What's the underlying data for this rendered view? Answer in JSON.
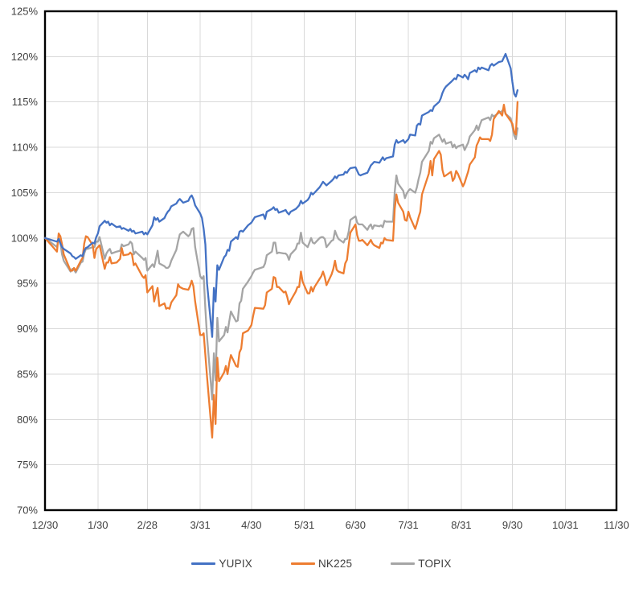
{
  "chart_data": {
    "type": "line",
    "title": "",
    "grid": true,
    "grid_color": "#D9D9D9",
    "axis_border_color": "#000000",
    "tick_label_color": "#404040",
    "legend_position": "bottom",
    "x_axis": {
      "tick_labels": [
        "12/30",
        "1/30",
        "2/28",
        "3/31",
        "4/30",
        "5/31",
        "6/30",
        "7/31",
        "8/31",
        "9/30",
        "10/31",
        "11/30"
      ]
    },
    "y_axis": {
      "min": 70,
      "max": 125,
      "step": 5,
      "unit": "%",
      "tick_labels": [
        "125%",
        "120%",
        "115%",
        "110%",
        "105%",
        "100%",
        "95%",
        "90%",
        "85%",
        "80%",
        "75%",
        "70%"
      ]
    },
    "dates": [
      "12/30",
      "1/6",
      "1/7",
      "1/8",
      "1/9",
      "1/10",
      "1/14",
      "1/15",
      "1/16",
      "1/17",
      "1/20",
      "1/21",
      "1/22",
      "1/23",
      "1/24",
      "1/27",
      "1/28",
      "1/29",
      "1/30",
      "1/31",
      "2/3",
      "2/4",
      "2/5",
      "2/6",
      "2/7",
      "2/10",
      "2/12",
      "2/13",
      "2/14",
      "2/17",
      "2/18",
      "2/19",
      "2/20",
      "2/21",
      "2/25",
      "2/26",
      "2/27",
      "2/28",
      "3/3",
      "3/4",
      "3/5",
      "3/6",
      "3/7",
      "3/10",
      "3/11",
      "3/12",
      "3/13",
      "3/14",
      "3/17",
      "3/18",
      "3/19",
      "3/21",
      "3/24",
      "3/25",
      "3/26",
      "3/27",
      "3/28",
      "3/31",
      "4/1",
      "4/2",
      "4/3",
      "4/4",
      "4/7",
      "4/8",
      "4/9",
      "4/10",
      "4/11",
      "4/14",
      "4/15",
      "4/16",
      "4/17",
      "4/18",
      "4/21",
      "4/22",
      "4/23",
      "4/24",
      "4/25",
      "4/28",
      "4/30",
      "5/1",
      "5/2",
      "5/7",
      "5/8",
      "5/9",
      "5/12",
      "5/13",
      "5/14",
      "5/15",
      "5/16",
      "5/19",
      "5/20",
      "5/21",
      "5/22",
      "5/23",
      "5/26",
      "5/27",
      "5/28",
      "5/29",
      "5/30",
      "6/2",
      "6/3",
      "6/4",
      "6/5",
      "6/6",
      "6/9",
      "6/10",
      "6/11",
      "6/12",
      "6/13",
      "6/16",
      "6/17",
      "6/18",
      "6/19",
      "6/20",
      "6/23",
      "6/24",
      "6/25",
      "6/26",
      "6/27",
      "6/30",
      "7/1",
      "7/2",
      "7/3",
      "7/4",
      "7/7",
      "7/8",
      "7/9",
      "7/10",
      "7/11",
      "7/14",
      "7/15",
      "7/16",
      "7/17",
      "7/18",
      "7/22",
      "7/23",
      "7/24",
      "7/25",
      "7/28",
      "7/29",
      "7/30",
      "7/31",
      "8/1",
      "8/4",
      "8/5",
      "8/6",
      "8/7",
      "8/8",
      "8/12",
      "8/13",
      "8/14",
      "8/15",
      "8/18",
      "8/19",
      "8/20",
      "8/21",
      "8/22",
      "8/25",
      "8/26",
      "8/27",
      "8/28",
      "8/29",
      "9/1",
      "9/2",
      "9/3",
      "9/4",
      "9/5",
      "9/8",
      "9/9",
      "9/10",
      "9/11",
      "9/12",
      "9/16",
      "9/17",
      "9/18",
      "9/19",
      "9/22",
      "9/24",
      "9/25",
      "9/26",
      "9/29",
      "9/30",
      "10/1",
      "10/2",
      "10/3"
    ],
    "series": [
      {
        "name": "YUPIX",
        "color": "#4472C4",
        "values": [
          100.0,
          99.6,
          99.9,
          99.4,
          99.0,
          98.8,
          98.3,
          98.0,
          97.9,
          97.7,
          98.1,
          98.0,
          98.6,
          98.9,
          99.0,
          99.5,
          99.4,
          100.1,
          100.5,
          101.3,
          101.9,
          101.7,
          101.8,
          101.4,
          101.6,
          101.2,
          101.3,
          101.0,
          101.1,
          100.8,
          101.0,
          100.7,
          100.8,
          100.5,
          100.7,
          100.4,
          100.6,
          100.4,
          101.4,
          102.3,
          102.0,
          102.2,
          101.8,
          102.2,
          102.6,
          102.9,
          103.1,
          103.5,
          103.8,
          104.1,
          104.3,
          103.9,
          104.1,
          104.5,
          104.7,
          104.3,
          103.6,
          102.7,
          102.2,
          101.0,
          99.3,
          95.0,
          89.1,
          94.5,
          93.0,
          97.0,
          96.5,
          97.9,
          98.1,
          98.7,
          98.6,
          99.6,
          100.1,
          99.9,
          100.7,
          100.8,
          100.7,
          101.4,
          101.7,
          102.0,
          102.3,
          102.6,
          102.1,
          102.9,
          103.2,
          103.4,
          103.1,
          103.2,
          102.8,
          103.0,
          103.1,
          102.8,
          102.6,
          102.9,
          103.2,
          103.4,
          103.6,
          104.1,
          103.8,
          104.2,
          104.5,
          105.0,
          104.8,
          105.0,
          105.6,
          105.9,
          106.2,
          106.0,
          105.8,
          106.3,
          106.5,
          106.8,
          106.6,
          106.9,
          107.0,
          107.3,
          107.2,
          107.5,
          107.7,
          107.8,
          107.4,
          107.0,
          106.9,
          107.0,
          107.2,
          107.6,
          108.0,
          108.2,
          108.4,
          108.3,
          108.6,
          108.9,
          108.6,
          108.8,
          109.0,
          110.3,
          110.8,
          110.5,
          110.8,
          110.5,
          110.7,
          110.9,
          111.4,
          111.3,
          112.4,
          112.6,
          112.5,
          113.5,
          113.9,
          114.1,
          114.0,
          114.5,
          115.0,
          115.4,
          116.0,
          116.4,
          116.7,
          117.2,
          117.4,
          117.6,
          117.5,
          118.0,
          117.7,
          118.0,
          117.8,
          117.5,
          118.2,
          118.5,
          118.3,
          118.8,
          118.6,
          118.8,
          118.5,
          119.0,
          119.2,
          119.0,
          119.4,
          119.5,
          119.9,
          120.3,
          118.7,
          117.2,
          115.9,
          115.6,
          116.3
        ]
      },
      {
        "name": "NK225",
        "color": "#ED7D31",
        "values": [
          100.0,
          98.5,
          100.5,
          100.2,
          99.3,
          98.2,
          96.4,
          96.4,
          96.7,
          96.4,
          97.5,
          97.8,
          99.4,
          100.2,
          100.1,
          99.2,
          97.8,
          98.8,
          99.0,
          99.2,
          96.6,
          97.3,
          97.3,
          97.9,
          97.2,
          97.3,
          97.7,
          98.9,
          98.1,
          98.2,
          98.4,
          98.2,
          97.0,
          97.2,
          95.8,
          95.6,
          95.9,
          94.0,
          94.7,
          93.0,
          93.8,
          94.5,
          92.5,
          92.8,
          92.2,
          92.3,
          92.2,
          92.9,
          93.7,
          94.9,
          94.6,
          94.4,
          94.3,
          94.7,
          95.3,
          94.7,
          93.0,
          89.3,
          89.3,
          89.5,
          87.1,
          84.7,
          78.0,
          82.7,
          79.5,
          86.8,
          84.2,
          85.2,
          85.9,
          85.0,
          86.2,
          87.1,
          85.9,
          85.8,
          87.4,
          87.8,
          89.5,
          89.8,
          90.4,
          91.4,
          92.3,
          92.2,
          92.6,
          94.0,
          94.4,
          95.7,
          95.6,
          94.6,
          94.6,
          94.0,
          94.1,
          93.5,
          92.7,
          93.1,
          94.1,
          94.6,
          94.6,
          96.3,
          95.2,
          93.9,
          93.9,
          94.6,
          94.1,
          94.6,
          95.5,
          95.8,
          96.3,
          95.7,
          94.8,
          96.0,
          96.6,
          97.5,
          96.5,
          96.3,
          96.1,
          97.2,
          97.6,
          99.2,
          100.6,
          101.5,
          100.3,
          99.7,
          99.7,
          99.8,
          99.2,
          99.5,
          99.8,
          99.4,
          99.2,
          98.9,
          99.5,
          99.4,
          100.0,
          99.8,
          99.7,
          103.2,
          104.8,
          103.9,
          102.9,
          102.0,
          101.9,
          102.9,
          102.3,
          101.0,
          101.6,
          102.3,
          102.9,
          104.8,
          107.1,
          108.5,
          106.9,
          108.7,
          109.6,
          109.2,
          107.5,
          106.8,
          106.9,
          107.3,
          106.3,
          106.6,
          107.4,
          107.1,
          105.7,
          106.1,
          106.7,
          107.3,
          108.1,
          108.9,
          110.2,
          110.6,
          111.1,
          110.9,
          110.9,
          110.7,
          111.4,
          113.1,
          114.0,
          113.5,
          114.7,
          113.7,
          112.9,
          112.6,
          111.7,
          111.4,
          115.0
        ]
      },
      {
        "name": "TOPIX",
        "color": "#A5A5A5",
        "values": [
          100.0,
          99.0,
          100.0,
          99.5,
          98.2,
          97.5,
          96.3,
          96.6,
          96.5,
          96.2,
          97.3,
          97.4,
          98.3,
          98.8,
          98.8,
          99.0,
          99.0,
          99.6,
          99.6,
          100.1,
          97.7,
          98.3,
          98.6,
          98.8,
          98.3,
          98.5,
          98.6,
          99.3,
          99.1,
          99.3,
          99.6,
          99.4,
          98.2,
          98.5,
          97.8,
          97.6,
          97.8,
          96.4,
          97.1,
          96.8,
          97.7,
          98.6,
          97.2,
          96.9,
          96.7,
          96.7,
          96.9,
          97.5,
          98.7,
          99.6,
          100.4,
          100.7,
          100.2,
          100.4,
          101.0,
          101.1,
          99.0,
          95.8,
          95.5,
          95.8,
          92.2,
          89.1,
          82.2,
          87.3,
          84.3,
          91.2,
          88.6,
          89.3,
          90.2,
          89.6,
          90.8,
          91.9,
          90.8,
          90.9,
          92.8,
          93.1,
          94.4,
          95.2,
          95.8,
          96.2,
          96.5,
          96.8,
          97.2,
          98.1,
          98.5,
          99.5,
          99.5,
          98.3,
          98.4,
          98.3,
          98.3,
          98.1,
          97.6,
          98.2,
          98.8,
          99.4,
          99.4,
          100.6,
          99.5,
          99.0,
          99.5,
          100.0,
          99.5,
          99.4,
          100.0,
          100.1,
          100.1,
          99.9,
          99.0,
          99.7,
          99.8,
          100.8,
          100.3,
          99.9,
          99.5,
          99.9,
          99.9,
          100.7,
          102.0,
          102.4,
          101.7,
          101.5,
          101.5,
          101.5,
          100.9,
          101.3,
          101.5,
          101.0,
          101.4,
          101.3,
          101.4,
          101.2,
          101.9,
          101.8,
          101.8,
          105.1,
          106.9,
          106.0,
          105.2,
          104.4,
          104.9,
          105.2,
          105.4,
          105.0,
          105.6,
          106.5,
          107.2,
          108.4,
          109.6,
          110.6,
          110.4,
          111.0,
          111.4,
          111.0,
          110.6,
          110.9,
          110.4,
          110.6,
          110.0,
          110.3,
          109.9,
          110.1,
          110.3,
          109.7,
          110.1,
          110.5,
          111.2,
          111.9,
          112.4,
          111.9,
          112.5,
          113.0,
          113.3,
          113.0,
          113.6,
          113.4,
          113.8,
          114.0,
          114.3,
          113.7,
          113.2,
          112.3,
          111.3,
          110.9,
          112.1
        ]
      }
    ]
  },
  "legend": {
    "items": [
      {
        "label": "YUPIX",
        "color": "#4472C4"
      },
      {
        "label": "NK225",
        "color": "#ED7D31"
      },
      {
        "label": "TOPIX",
        "color": "#A5A5A5"
      }
    ]
  }
}
